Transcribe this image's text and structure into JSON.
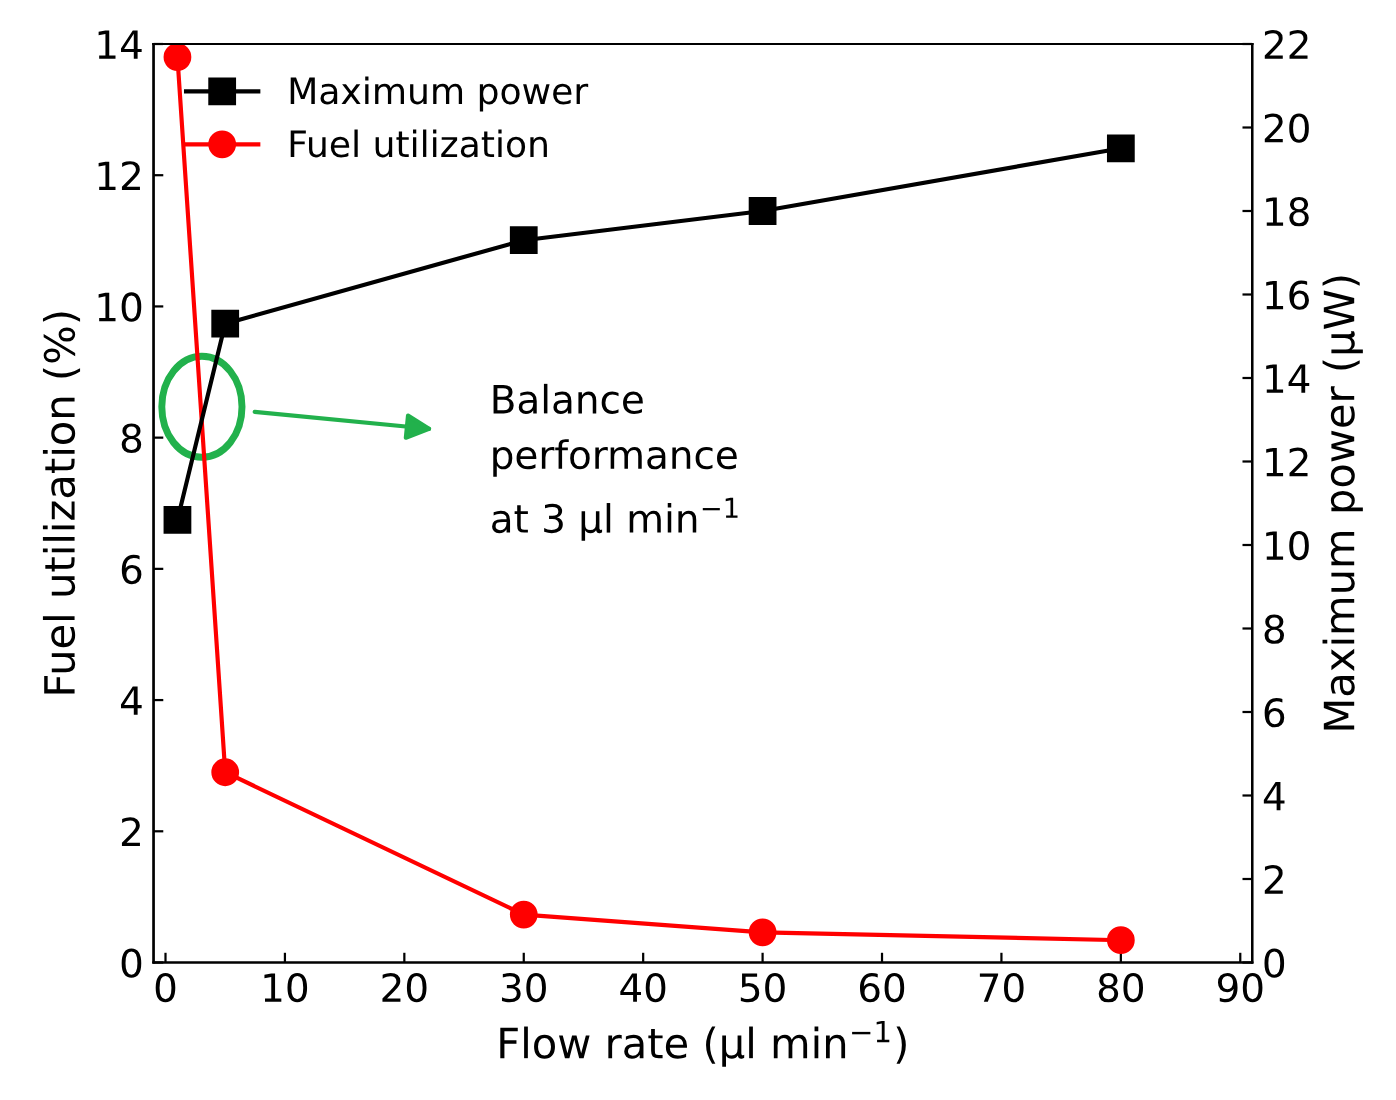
{
  "chart_data": {
    "type": "line",
    "xlabel": "Flow rate (μl min$^{−1}$)",
    "ylabel": "Fuel utilization (%)",
    "y2label": "Maximum power (μW)",
    "xlim": [
      -1,
      91
    ],
    "xticks": [
      0,
      10,
      20,
      30,
      40,
      50,
      60,
      70,
      80,
      90
    ],
    "ylim": [
      0,
      14
    ],
    "yticks": [
      0,
      2,
      4,
      6,
      8,
      10,
      12,
      14
    ],
    "y2lim": [
      0,
      22
    ],
    "y2ticks": [
      0,
      2,
      4,
      6,
      8,
      10,
      12,
      14,
      16,
      18,
      20,
      22
    ],
    "legend": "top left",
    "grid": false,
    "line_style": "solid",
    "series": [
      {
        "name": "Maximum power",
        "color": "#000000",
        "marker": "square",
        "axis": "y2",
        "x": [
          1,
          5,
          30,
          50,
          80
        ],
        "values": [
          10.6,
          15.3,
          17.3,
          18.0,
          19.5
        ]
      },
      {
        "name": "Fuel utilization",
        "color": "#ff0000",
        "marker": "circle",
        "x": [
          1,
          5,
          30,
          50,
          80
        ],
        "values": [
          13.8,
          2.9,
          0.73,
          0.46,
          0.34
        ]
      }
    ],
    "annotations": [
      "Balance\nperformance\nat 3 μl min$^{−1}$"
    ]
  }
}
